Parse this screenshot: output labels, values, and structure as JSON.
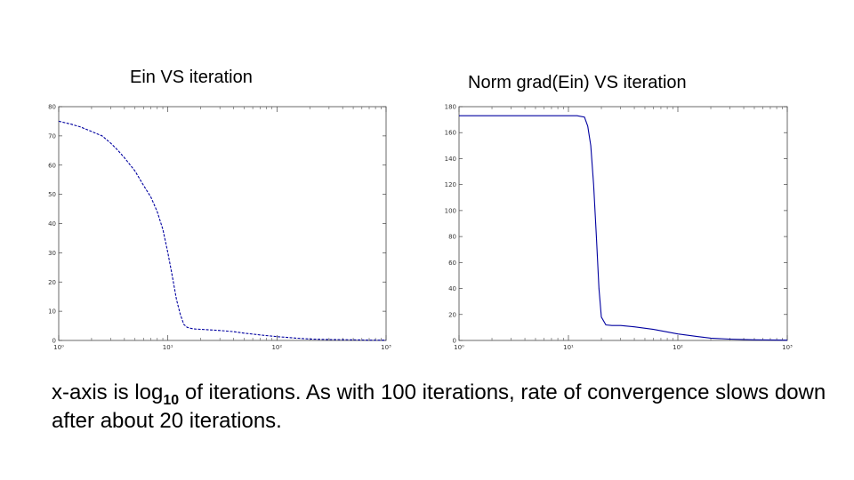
{
  "chart_data": [
    {
      "type": "line",
      "title": "Ein VS iteration",
      "x_scale": "log",
      "xlim": [
        1,
        1000
      ],
      "ylim": [
        0,
        80
      ],
      "x_ticks": [
        "10⁰",
        "10¹",
        "10²",
        "10³"
      ],
      "y_ticks": [
        0,
        10,
        20,
        30,
        40,
        50,
        60,
        70,
        80
      ],
      "grid": false,
      "color": "#0000a0",
      "series": [
        {
          "x": [
            1,
            1.3,
            1.6,
            2,
            2.5,
            3,
            3.5,
            4,
            5,
            6,
            7,
            8,
            9,
            10,
            11,
            12,
            13,
            14,
            15,
            16,
            17,
            18,
            20,
            25,
            30,
            40,
            50,
            70,
            100,
            150,
            200,
            300,
            500,
            700,
            1000
          ],
          "y": [
            75,
            74,
            73,
            71.5,
            70,
            67.5,
            65,
            62.5,
            58,
            53,
            49,
            44,
            38,
            30,
            22,
            14,
            9,
            5.5,
            4.5,
            4.2,
            4.0,
            3.9,
            3.8,
            3.6,
            3.4,
            3.0,
            2.5,
            1.9,
            1.3,
            0.8,
            0.5,
            0.3,
            0.2,
            0.1,
            0.1
          ]
        }
      ]
    },
    {
      "type": "line",
      "title": "Norm grad(Ein) VS iteration",
      "x_scale": "log",
      "xlim": [
        1,
        1000
      ],
      "ylim": [
        0,
        180
      ],
      "x_ticks": [
        "10⁰",
        "10¹",
        "10²",
        "10³"
      ],
      "y_ticks": [
        0,
        20,
        40,
        60,
        80,
        100,
        120,
        140,
        160,
        180
      ],
      "grid": false,
      "color": "#0000a0",
      "series": [
        {
          "x": [
            1,
            2,
            5,
            8,
            12,
            14,
            15,
            16,
            17,
            18,
            19,
            20,
            22,
            25,
            30,
            40,
            60,
            100,
            150,
            200,
            300,
            500,
            1000
          ],
          "y": [
            173,
            173,
            173,
            173,
            173,
            172,
            165,
            150,
            120,
            80,
            40,
            18,
            12,
            11.5,
            11.5,
            10.5,
            8.5,
            5,
            3,
            1.8,
            1,
            0.5,
            0.2
          ]
        }
      ]
    }
  ],
  "caption": {
    "part1": "x-axis is log",
    "sub": "10",
    "part2": " of iterations. As with 100 iterations, rate of convergence slows down after about 20 iterations."
  }
}
